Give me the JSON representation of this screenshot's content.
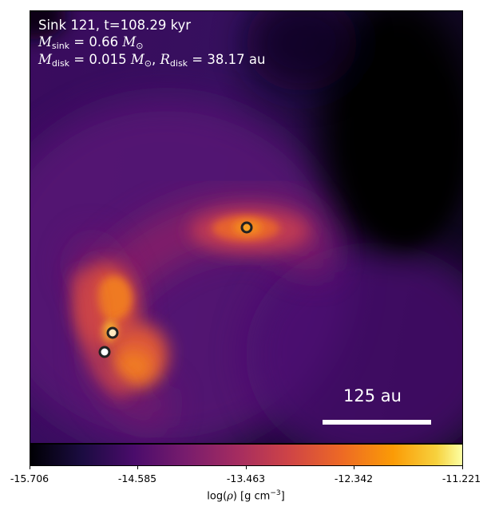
{
  "annotations": {
    "line1": "Sink 121, t=108.29 kyr",
    "msink_symbol": "M",
    "msink_sub": "sink",
    "msink_value": " = 0.66 ",
    "msun_symbol": "M",
    "sun_sub": "⊙",
    "mdisk_symbol": "M",
    "mdisk_sub": "disk",
    "mdisk_value": " = 0.015 ",
    "rdisk_symbol": "R",
    "rdisk_sub": "disk",
    "rdisk_value": " = 38.17 au",
    "comma": ", "
  },
  "scalebar": {
    "label": "125 au"
  },
  "colorbar": {
    "colormap": "inferno",
    "ticks": [
      "-15.706",
      "-14.585",
      "-13.463",
      "-12.342",
      "-11.221"
    ],
    "label_prefix": "log(",
    "label_rho": "ρ",
    "label_mid": ") [g cm",
    "label_sup": "−3",
    "label_end": "]"
  },
  "sinks": [
    {
      "name": "sink-121"
    },
    {
      "name": "sink-b"
    },
    {
      "name": "sink-c"
    }
  ],
  "colors": {
    "background_dark": "#000004",
    "purple": "#4a0c6b",
    "orange": "#ed6925",
    "yellow": "#fcffa4",
    "sink_ring": "#222222"
  }
}
